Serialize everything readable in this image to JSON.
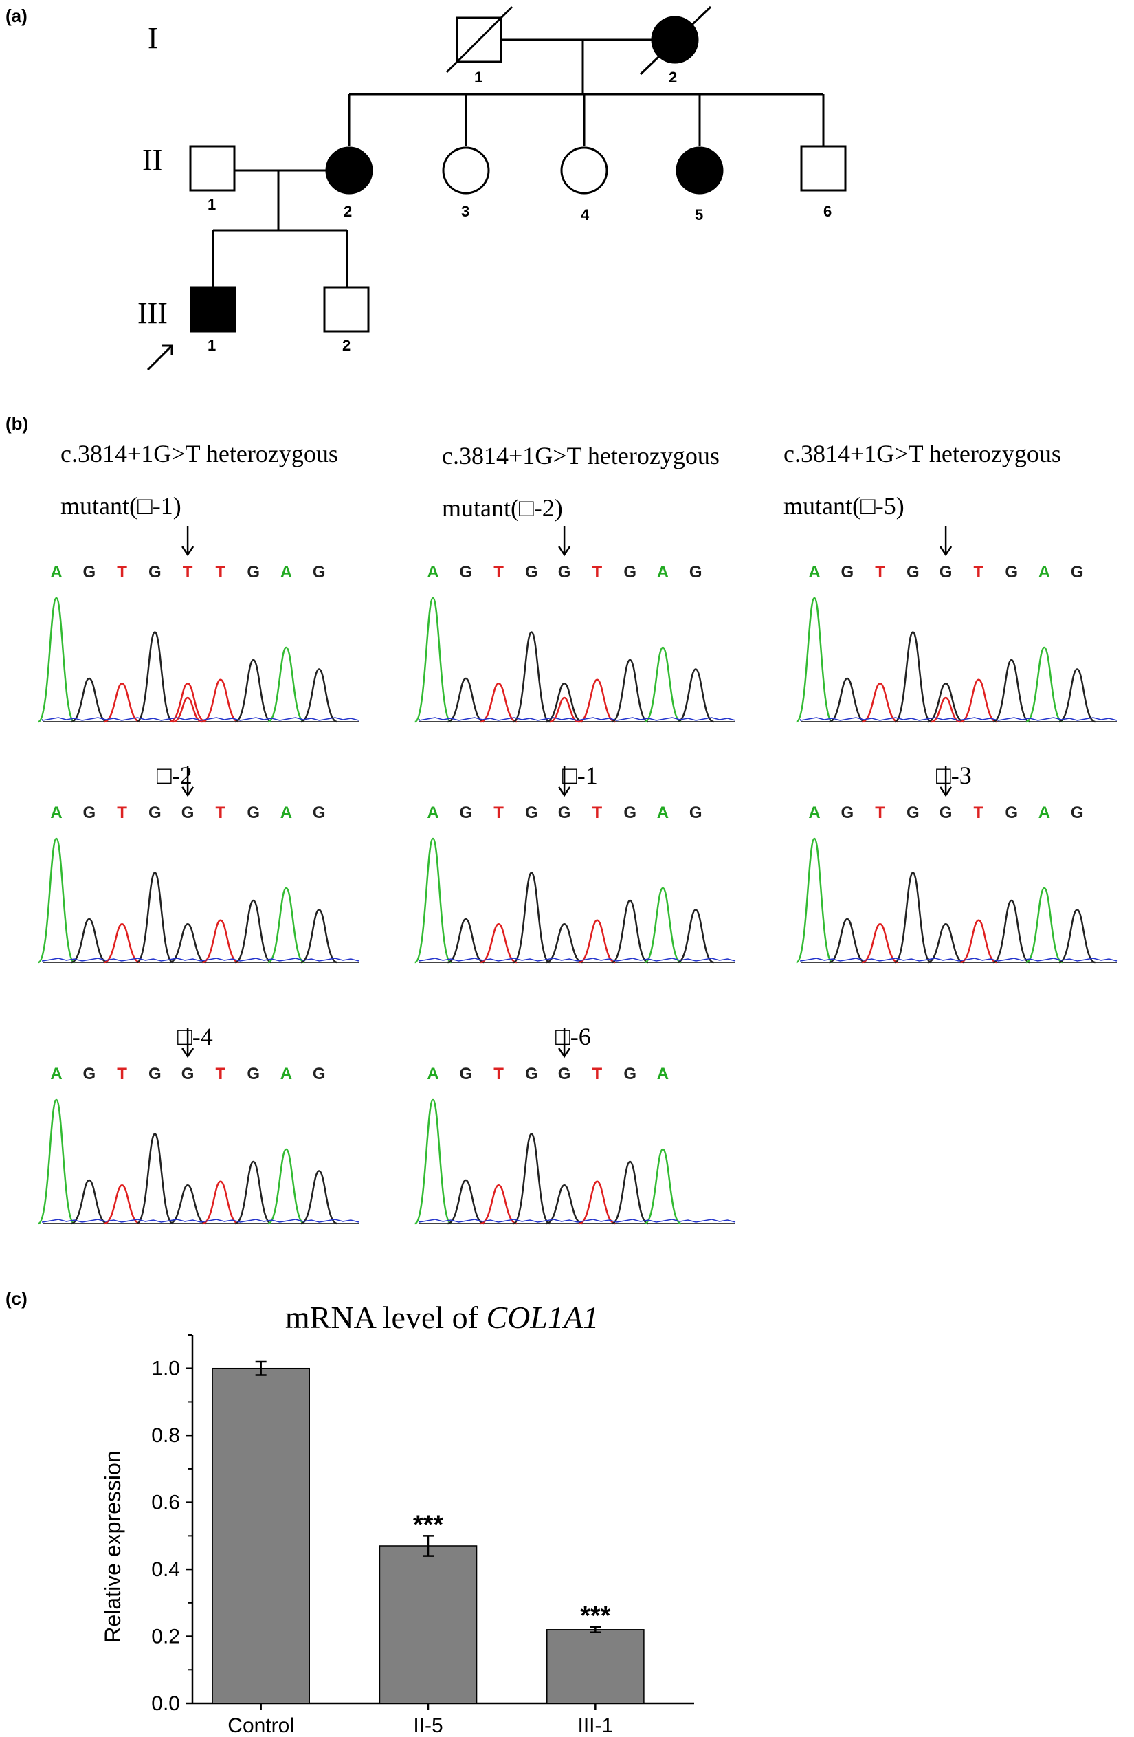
{
  "panels": {
    "a": "(a)",
    "b": "(b)",
    "c": "(c)"
  },
  "pedigree": {
    "generations": [
      "I",
      "II",
      "III"
    ],
    "gen_I": [
      {
        "num": "1",
        "sex": "male",
        "affected": false,
        "deceased": true
      },
      {
        "num": "2",
        "sex": "female",
        "affected": true,
        "deceased": true
      }
    ],
    "gen_II": [
      {
        "num": "1",
        "sex": "male",
        "affected": false
      },
      {
        "num": "2",
        "sex": "female",
        "affected": true
      },
      {
        "num": "3",
        "sex": "female",
        "affected": false
      },
      {
        "num": "4",
        "sex": "female",
        "affected": false
      },
      {
        "num": "5",
        "sex": "female",
        "affected": true
      },
      {
        "num": "6",
        "sex": "male",
        "affected": false
      }
    ],
    "gen_III": [
      {
        "num": "1",
        "sex": "male",
        "affected": true,
        "proband": true
      },
      {
        "num": "2",
        "sex": "male",
        "affected": false
      }
    ]
  },
  "sequencing": {
    "base_colors": {
      "A": "#22aa22",
      "G": "#222222",
      "T": "#dd2222"
    },
    "trace_colors": {
      "A": "#33bb33",
      "G": "#222222",
      "T": "#e02020",
      "C": "#2233cc"
    },
    "panels": [
      {
        "title1": "c.3814+1G>T heterozygous",
        "title2": "mutant(□-1)",
        "bases": [
          "A",
          "G",
          "T",
          "G",
          "T",
          "T",
          "G",
          "A",
          "G"
        ],
        "mutated": true
      },
      {
        "title1": "c.3814+1G>T heterozygous",
        "title2": "mutant(□-2)",
        "bases": [
          "A",
          "G",
          "T",
          "G",
          "G",
          "T",
          "G",
          "A",
          "G"
        ],
        "mutated": true
      },
      {
        "title1": "c.3814+1G>T heterozygous",
        "title2": "mutant(□-5)",
        "bases": [
          "A",
          "G",
          "T",
          "G",
          "G",
          "T",
          "G",
          "A",
          "G"
        ],
        "mutated": true
      },
      {
        "title1": "",
        "title2": "□-2",
        "bases": [
          "A",
          "G",
          "T",
          "G",
          "G",
          "T",
          "G",
          "A",
          "G"
        ],
        "mutated": false
      },
      {
        "title1": "",
        "title2": "□-1",
        "bases": [
          "A",
          "G",
          "T",
          "G",
          "G",
          "T",
          "G",
          "A",
          "G"
        ],
        "mutated": false
      },
      {
        "title1": "",
        "title2": "□-3",
        "bases": [
          "A",
          "G",
          "T",
          "G",
          "G",
          "T",
          "G",
          "A",
          "G"
        ],
        "mutated": false
      },
      {
        "title1": "",
        "title2": "□-4",
        "bases": [
          "A",
          "G",
          "T",
          "G",
          "G",
          "T",
          "G",
          "A",
          "G"
        ],
        "mutated": false
      },
      {
        "title1": "",
        "title2": "□-6",
        "bases": [
          "A",
          "G",
          "T",
          "G",
          "G",
          "T",
          "G",
          "A"
        ],
        "mutated": false
      }
    ]
  },
  "chart_data": {
    "type": "bar",
    "title_prefix": "mRNA level of ",
    "title_gene": "COL1A1",
    "xlabel": "",
    "ylabel": "Relative expression",
    "categories": [
      "Control",
      "II-5",
      "III-1"
    ],
    "values": [
      1.0,
      0.47,
      0.22
    ],
    "errors": [
      0.02,
      0.03,
      0.008
    ],
    "significance": [
      "",
      "***",
      "***"
    ],
    "ylim": [
      0.0,
      1.1
    ],
    "yticks": [
      "0.0",
      "0.2",
      "0.4",
      "0.6",
      "0.8",
      "1.0"
    ],
    "bar_color": "#808080",
    "grid": false
  }
}
